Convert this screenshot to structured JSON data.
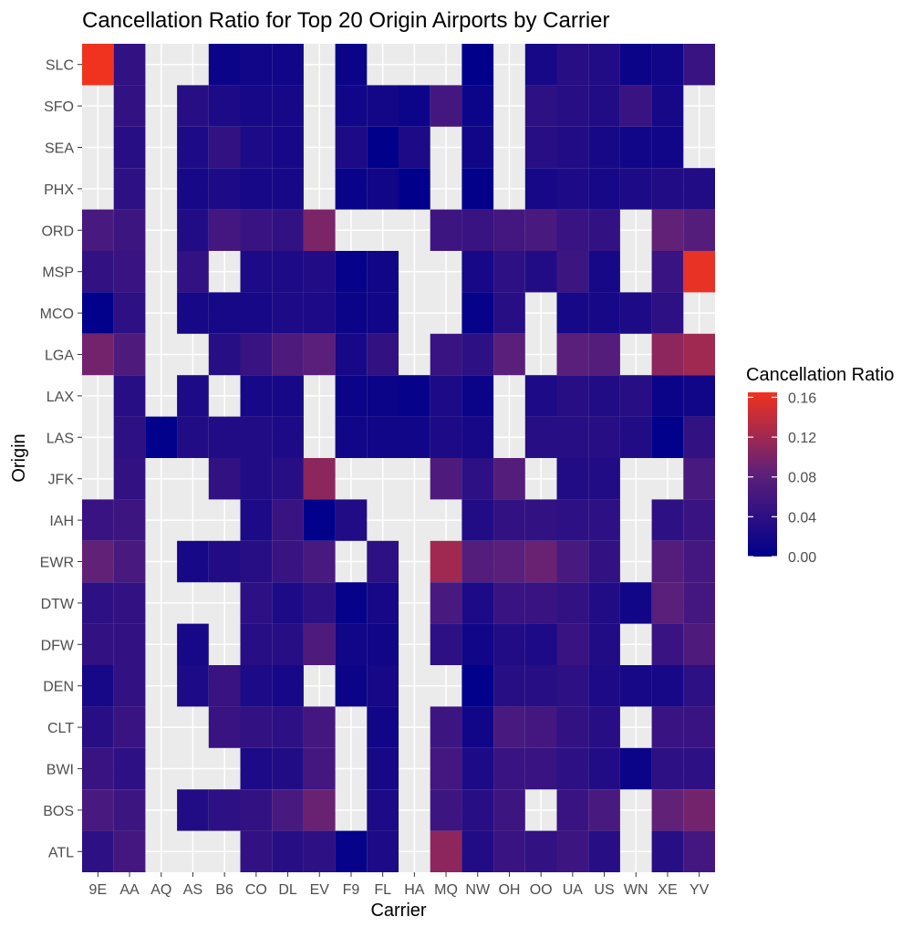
{
  "chart_data": {
    "type": "heatmap",
    "title": "Cancellation Ratio for Top 20 Origin Airports by Carrier",
    "xlabel": "Carrier",
    "ylabel": "Origin",
    "x_categories": [
      "9E",
      "AA",
      "AQ",
      "AS",
      "B6",
      "CO",
      "DL",
      "EV",
      "F9",
      "FL",
      "HA",
      "MQ",
      "NW",
      "OH",
      "OO",
      "UA",
      "US",
      "WN",
      "XE",
      "YV"
    ],
    "y_categories": [
      "SLC",
      "SFO",
      "SEA",
      "PHX",
      "ORD",
      "MSP",
      "MCO",
      "LGA",
      "LAX",
      "LAS",
      "JFK",
      "IAH",
      "EWR",
      "DTW",
      "DFW",
      "DEN",
      "CLT",
      "BWI",
      "BOS",
      "ATL"
    ],
    "values": [
      [
        0.165,
        0.045,
        null,
        null,
        0.01,
        0.015,
        0.015,
        null,
        0.01,
        null,
        null,
        null,
        0.001,
        null,
        0.02,
        0.035,
        0.03,
        0.01,
        0.015,
        0.05
      ],
      [
        null,
        0.045,
        null,
        0.035,
        0.025,
        0.02,
        0.02,
        null,
        0.015,
        0.018,
        0.012,
        0.06,
        0.012,
        null,
        0.04,
        0.035,
        0.03,
        0.05,
        0.02,
        null
      ],
      [
        null,
        0.035,
        null,
        0.025,
        0.045,
        0.025,
        0.02,
        null,
        0.025,
        0.001,
        0.025,
        null,
        0.015,
        null,
        0.035,
        0.03,
        0.02,
        0.015,
        0.015,
        null
      ],
      [
        null,
        0.04,
        null,
        0.02,
        0.025,
        0.02,
        0.02,
        null,
        0.008,
        0.015,
        0.001,
        null,
        0.003,
        null,
        0.02,
        0.025,
        0.02,
        0.025,
        0.03,
        0.03
      ],
      [
        0.065,
        0.055,
        null,
        0.03,
        0.06,
        0.05,
        0.045,
        0.1,
        null,
        null,
        null,
        0.055,
        0.05,
        0.06,
        0.065,
        0.05,
        0.045,
        null,
        0.085,
        0.075
      ],
      [
        0.045,
        0.05,
        null,
        0.045,
        null,
        0.025,
        0.025,
        0.03,
        0.005,
        0.015,
        null,
        null,
        0.02,
        0.04,
        0.03,
        0.055,
        0.02,
        null,
        0.05,
        0.16
      ],
      [
        0.002,
        0.04,
        null,
        0.02,
        0.02,
        0.02,
        0.025,
        0.025,
        0.01,
        0.015,
        null,
        null,
        0.005,
        0.035,
        null,
        0.02,
        0.02,
        0.025,
        0.04,
        null
      ],
      [
        0.095,
        0.07,
        null,
        null,
        0.035,
        0.05,
        0.07,
        0.08,
        0.02,
        0.045,
        null,
        0.05,
        0.04,
        0.08,
        null,
        0.08,
        0.075,
        null,
        0.11,
        0.12
      ],
      [
        null,
        0.035,
        null,
        0.025,
        null,
        0.02,
        0.02,
        null,
        0.01,
        0.01,
        0.005,
        0.025,
        0.01,
        null,
        0.025,
        0.035,
        0.03,
        0.035,
        0.01,
        0.015
      ],
      [
        null,
        0.04,
        0.002,
        0.03,
        0.03,
        0.03,
        0.025,
        null,
        0.015,
        0.015,
        0.015,
        0.025,
        0.02,
        null,
        0.035,
        0.035,
        0.035,
        0.03,
        0.002,
        0.045
      ],
      [
        null,
        0.045,
        null,
        null,
        0.045,
        0.03,
        0.035,
        0.11,
        null,
        null,
        null,
        0.07,
        0.04,
        0.075,
        null,
        0.03,
        0.03,
        null,
        null,
        0.065
      ],
      [
        0.05,
        0.055,
        null,
        null,
        null,
        0.025,
        0.05,
        0.002,
        0.03,
        null,
        null,
        null,
        0.03,
        0.045,
        0.045,
        0.04,
        0.04,
        null,
        0.04,
        0.05
      ],
      [
        0.085,
        0.065,
        null,
        0.02,
        0.03,
        0.035,
        0.05,
        0.065,
        null,
        0.04,
        null,
        0.12,
        0.075,
        0.08,
        0.09,
        0.065,
        0.045,
        null,
        0.075,
        0.06
      ],
      [
        0.04,
        0.045,
        null,
        null,
        null,
        0.04,
        0.025,
        0.04,
        0.005,
        0.02,
        null,
        0.065,
        0.025,
        0.05,
        0.05,
        0.045,
        0.03,
        0.015,
        0.08,
        0.06
      ],
      [
        0.045,
        0.045,
        null,
        0.02,
        null,
        0.035,
        0.035,
        0.07,
        0.015,
        0.015,
        null,
        0.04,
        0.015,
        0.03,
        0.025,
        0.05,
        0.03,
        null,
        0.05,
        0.07
      ],
      [
        0.02,
        0.045,
        null,
        0.025,
        0.05,
        0.025,
        0.02,
        null,
        0.01,
        0.02,
        null,
        null,
        0.002,
        0.035,
        0.035,
        0.04,
        0.025,
        0.02,
        0.02,
        0.04
      ],
      [
        0.035,
        0.05,
        null,
        null,
        0.05,
        0.045,
        0.04,
        0.06,
        null,
        0.015,
        null,
        0.055,
        0.015,
        0.065,
        0.06,
        0.045,
        0.035,
        null,
        0.05,
        0.05
      ],
      [
        0.05,
        0.04,
        null,
        null,
        null,
        0.025,
        0.03,
        0.06,
        null,
        0.02,
        null,
        0.06,
        0.025,
        0.05,
        0.05,
        0.04,
        0.03,
        0.01,
        0.04,
        0.04
      ],
      [
        0.065,
        0.055,
        null,
        0.03,
        0.04,
        0.045,
        0.065,
        0.09,
        null,
        0.025,
        null,
        0.055,
        0.035,
        0.055,
        null,
        0.05,
        0.065,
        null,
        0.085,
        0.095
      ],
      [
        0.04,
        0.06,
        null,
        null,
        null,
        0.045,
        0.035,
        0.04,
        0.005,
        0.025,
        null,
        0.11,
        0.03,
        0.05,
        0.045,
        0.055,
        0.035,
        null,
        0.035,
        0.06
      ]
    ],
    "color_scale": {
      "low": "#00008b",
      "mid": "#5c207a",
      "high": "#f0331f",
      "min": 0.0,
      "max": 0.165
    },
    "legend": {
      "title": "Cancellation Ratio",
      "ticks": [
        {
          "value": 0.16,
          "label": "0.16"
        },
        {
          "value": 0.12,
          "label": "0.12"
        },
        {
          "value": 0.08,
          "label": "0.08"
        },
        {
          "value": 0.04,
          "label": "0.04"
        },
        {
          "value": 0.0,
          "label": "0.00"
        }
      ],
      "placement": "right"
    },
    "panel_background": "#ebebeb",
    "grid_color": "#ffffff",
    "grid": true
  }
}
